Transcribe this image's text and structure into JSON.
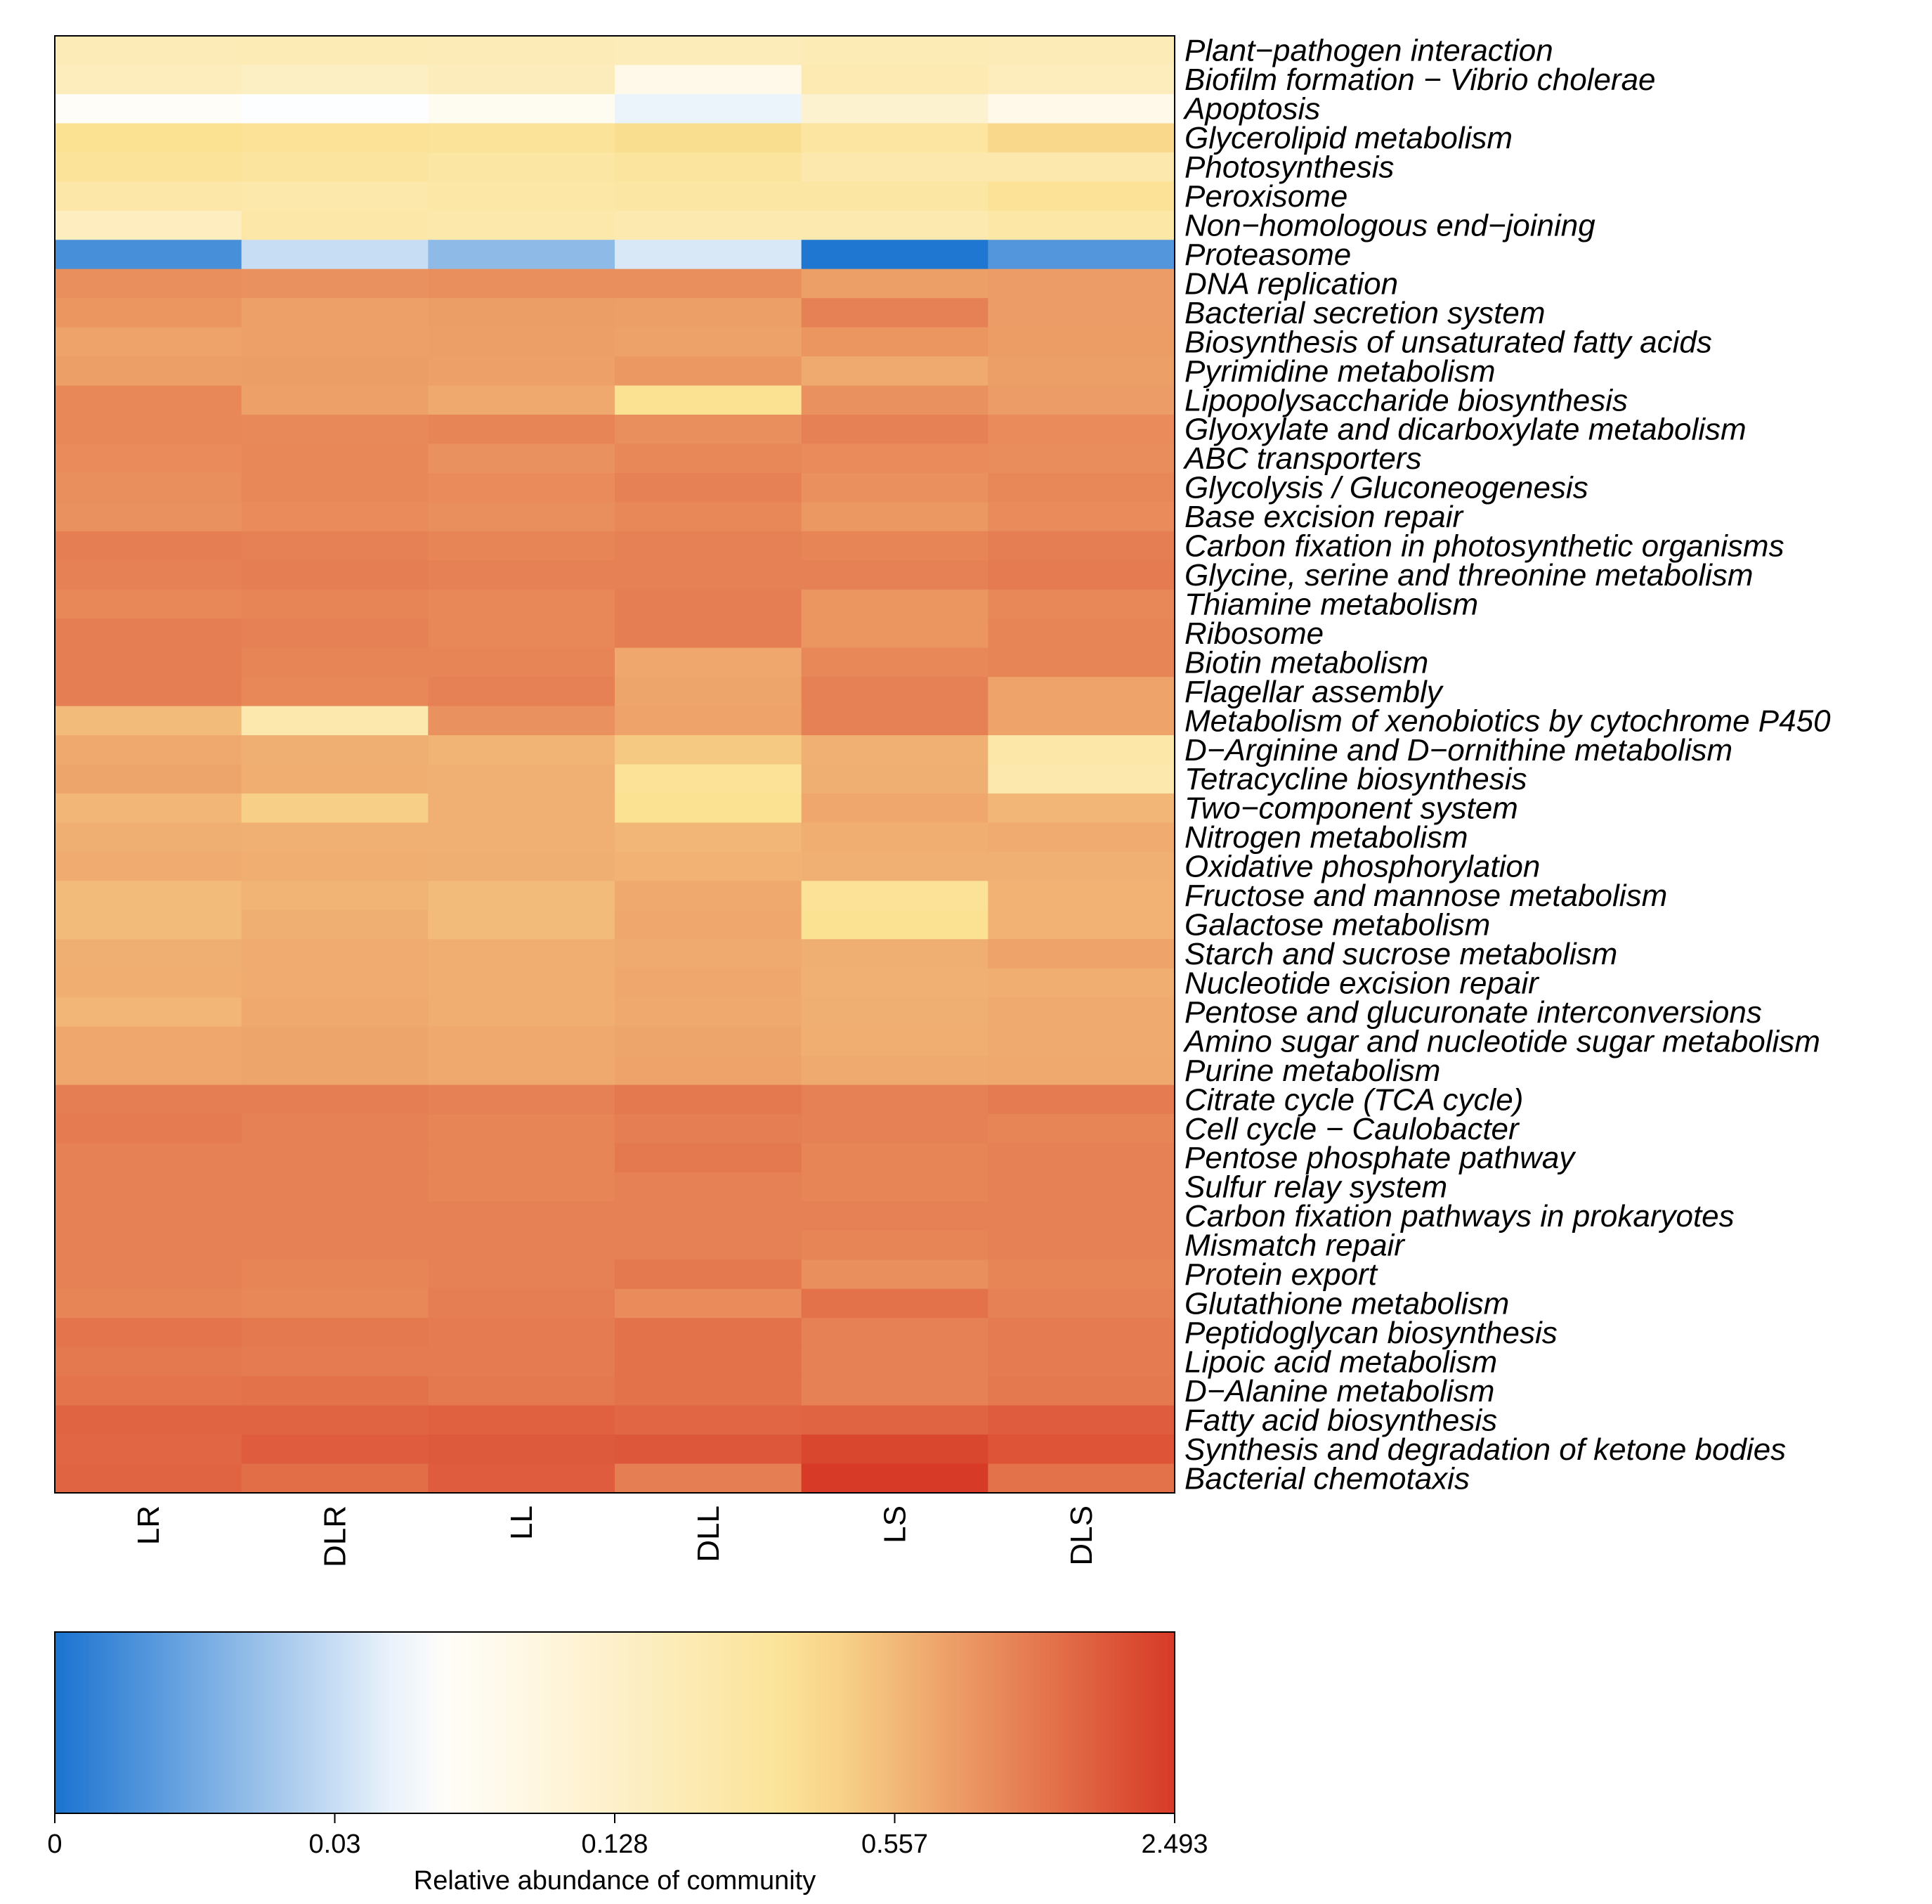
{
  "chart_data": {
    "type": "heatmap",
    "columns": [
      "LR",
      "DLR",
      "LL",
      "DLL",
      "LS",
      "DLS"
    ],
    "rows": [
      "Plant−pathogen interaction",
      "Biofilm formation − Vibrio cholerae",
      "Apoptosis",
      "Glycerolipid metabolism",
      "Photosynthesis",
      "Peroxisome",
      "Non−homologous end−joining",
      "Proteasome",
      "DNA replication",
      "Bacterial secretion system",
      "Biosynthesis of unsaturated fatty acids",
      "Pyrimidine metabolism",
      "Lipopolysaccharide biosynthesis",
      "Glyoxylate and dicarboxylate metabolism",
      "ABC transporters",
      "Glycolysis / Gluconeogenesis",
      "Base excision repair",
      "Carbon fixation in photosynthetic organisms",
      "Glycine, serine and threonine metabolism",
      "Thiamine metabolism",
      "Ribosome",
      "Biotin metabolism",
      "Flagellar assembly",
      "Metabolism of xenobiotics by cytochrome P450",
      "D−Arginine and D−ornithine metabolism",
      "Tetracycline biosynthesis",
      "Two−component system",
      "Nitrogen metabolism",
      "Oxidative phosphorylation",
      "Fructose and mannose metabolism",
      "Galactose metabolism",
      "Starch and sucrose metabolism",
      "Nucleotide excision repair",
      "Pentose and glucuronate interconversions",
      "Amino sugar and nucleotide sugar metabolism",
      "Purine metabolism",
      "Citrate cycle (TCA cycle)",
      "Cell cycle − Caulobacter",
      "Pentose phosphate pathway",
      "Sulfur relay system",
      "Carbon fixation pathways in prokaryotes",
      "Mismatch repair",
      "Protein export",
      "Glutathione metabolism",
      "Peptidoglycan biosynthesis",
      "Lipoic acid metabolism",
      "D−Alanine metabolism",
      "Fatty acid biosynthesis",
      "Synthesis and degradation of ketone bodies",
      "Bacterial chemotaxis"
    ],
    "values": [
      [
        0.22,
        0.23,
        0.22,
        0.21,
        0.23,
        0.22
      ],
      [
        0.19,
        0.15,
        0.2,
        0.09,
        0.25,
        0.19
      ],
      [
        0.07,
        0.06,
        0.08,
        0.05,
        0.12,
        0.09
      ],
      [
        0.42,
        0.4,
        0.38,
        0.43,
        0.34,
        0.45
      ],
      [
        0.38,
        0.36,
        0.33,
        0.36,
        0.28,
        0.28
      ],
      [
        0.3,
        0.29,
        0.31,
        0.33,
        0.33,
        0.4
      ],
      [
        0.18,
        0.3,
        0.29,
        0.26,
        0.26,
        0.31
      ],
      [
        0.008,
        0.03,
        0.02,
        0.04,
        0.001,
        0.01
      ],
      [
        1.2,
        1.15,
        1.2,
        1.2,
        0.95,
        1.0
      ],
      [
        1.1,
        0.92,
        0.97,
        0.95,
        1.4,
        1.0
      ],
      [
        0.88,
        0.92,
        0.95,
        0.9,
        1.1,
        0.98
      ],
      [
        0.95,
        0.97,
        0.93,
        1.05,
        0.78,
        0.95
      ],
      [
        1.3,
        0.93,
        0.8,
        0.42,
        1.15,
        1.0
      ],
      [
        1.3,
        1.28,
        1.35,
        1.2,
        1.4,
        1.25
      ],
      [
        1.25,
        1.3,
        1.15,
        1.3,
        1.25,
        1.22
      ],
      [
        1.2,
        1.3,
        1.25,
        1.4,
        1.18,
        1.3
      ],
      [
        1.15,
        1.25,
        1.2,
        1.3,
        1.05,
        1.25
      ],
      [
        1.45,
        1.4,
        1.35,
        1.4,
        1.35,
        1.45
      ],
      [
        1.4,
        1.45,
        1.4,
        1.4,
        1.4,
        1.5
      ],
      [
        1.3,
        1.35,
        1.3,
        1.45,
        1.1,
        1.3
      ],
      [
        1.45,
        1.4,
        1.3,
        1.45,
        1.1,
        1.35
      ],
      [
        1.45,
        1.35,
        1.35,
        0.82,
        1.3,
        1.35
      ],
      [
        1.45,
        1.3,
        1.4,
        0.85,
        1.4,
        0.88
      ],
      [
        0.55,
        0.28,
        1.15,
        0.88,
        1.4,
        0.88
      ],
      [
        0.8,
        0.7,
        0.62,
        0.5,
        0.68,
        0.3
      ],
      [
        0.85,
        0.72,
        0.68,
        0.4,
        0.7,
        0.28
      ],
      [
        0.6,
        0.48,
        0.68,
        0.42,
        0.82,
        0.58
      ],
      [
        0.7,
        0.68,
        0.68,
        0.6,
        0.72,
        0.75
      ],
      [
        0.75,
        0.72,
        0.7,
        0.65,
        0.68,
        0.68
      ],
      [
        0.55,
        0.62,
        0.55,
        0.8,
        0.4,
        0.65
      ],
      [
        0.55,
        0.7,
        0.55,
        0.82,
        0.42,
        0.65
      ],
      [
        0.7,
        0.75,
        0.72,
        0.78,
        0.7,
        0.88
      ],
      [
        0.72,
        0.75,
        0.72,
        0.82,
        0.68,
        0.72
      ],
      [
        0.6,
        0.8,
        0.72,
        0.8,
        0.7,
        0.78
      ],
      [
        0.82,
        0.85,
        0.8,
        0.85,
        0.72,
        0.78
      ],
      [
        0.82,
        0.85,
        0.8,
        0.88,
        0.78,
        0.8
      ],
      [
        1.45,
        1.45,
        1.4,
        1.55,
        1.4,
        1.5
      ],
      [
        1.5,
        1.4,
        1.35,
        1.45,
        1.4,
        1.35
      ],
      [
        1.4,
        1.4,
        1.35,
        1.55,
        1.35,
        1.4
      ],
      [
        1.4,
        1.4,
        1.35,
        1.4,
        1.35,
        1.4
      ],
      [
        1.4,
        1.4,
        1.4,
        1.4,
        1.4,
        1.4
      ],
      [
        1.4,
        1.4,
        1.4,
        1.4,
        1.35,
        1.4
      ],
      [
        1.4,
        1.35,
        1.4,
        1.55,
        1.2,
        1.35
      ],
      [
        1.35,
        1.3,
        1.45,
        1.25,
        1.65,
        1.4
      ],
      [
        1.6,
        1.55,
        1.5,
        1.65,
        1.4,
        1.5
      ],
      [
        1.55,
        1.5,
        1.5,
        1.65,
        1.4,
        1.5
      ],
      [
        1.6,
        1.65,
        1.55,
        1.65,
        1.4,
        1.55
      ],
      [
        1.85,
        1.85,
        1.9,
        1.8,
        1.85,
        1.95
      ],
      [
        1.8,
        1.95,
        2.0,
        2.05,
        2.3,
        2.1
      ],
      [
        1.85,
        1.7,
        1.95,
        1.45,
        2.49,
        1.65
      ]
    ],
    "colorbar": {
      "title": "Relative abundance of community",
      "ticks": [
        "0",
        "0.03",
        "0.128",
        "0.557",
        "2.493"
      ],
      "min": 0,
      "max": 2.493,
      "scale": "transformed (non-linear)",
      "colors": [
        "#1a73d0",
        "#ffffff",
        "#fbe192",
        "#d73a27"
      ]
    }
  }
}
